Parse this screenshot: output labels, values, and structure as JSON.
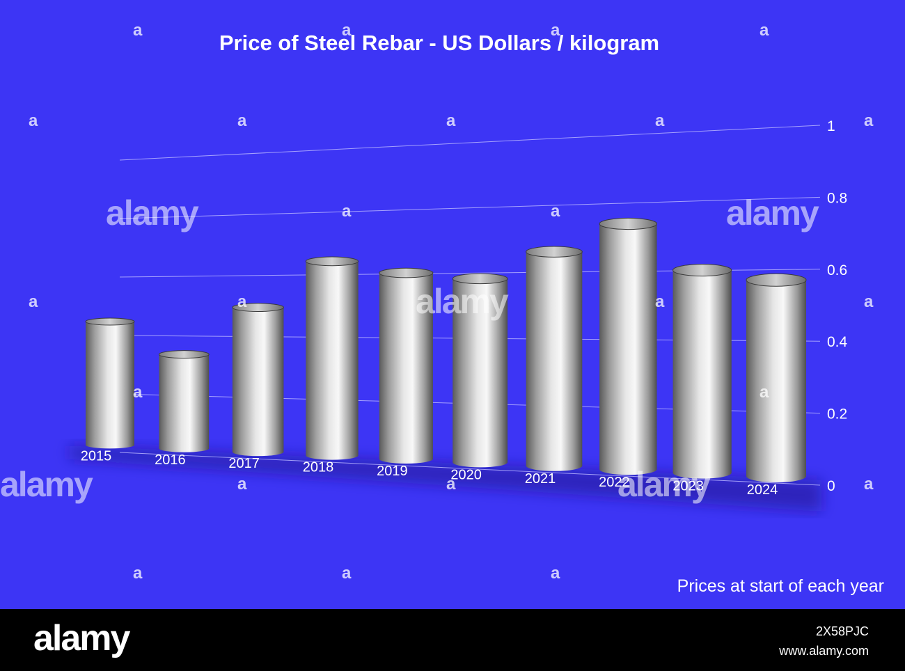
{
  "chart_data": {
    "type": "bar",
    "title": "Price of Steel Rebar - US Dollars / kilogram",
    "note": "Prices at start of each year",
    "categories": [
      "2015",
      "2016",
      "2017",
      "2018",
      "2019",
      "2020",
      "2021",
      "2022",
      "2023",
      "2024"
    ],
    "values": [
      0.43,
      0.32,
      0.48,
      0.63,
      0.59,
      0.57,
      0.65,
      0.73,
      0.59,
      0.56
    ],
    "y_ticks": [
      "0",
      "0.2",
      "0.4",
      "0.6",
      "0.8",
      "1"
    ],
    "ylim": [
      0,
      1
    ],
    "grid": true,
    "bar_style": "3d-cylinder",
    "colors": {
      "background": "#3d35f5",
      "bar": "#bdbdbd",
      "grid": "#b8b4ff",
      "text": "#ffffff"
    }
  },
  "footer": {
    "brand": "alamy",
    "image_id": "2X58PJC",
    "site": "www.alamy.com"
  },
  "watermark": {
    "text": "alamy",
    "mark": "a"
  }
}
